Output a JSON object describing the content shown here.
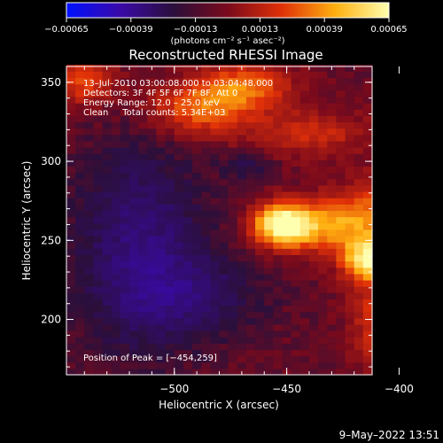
{
  "chart_data": {
    "type": "heatmap",
    "title": "Reconstructed RHESSI Image",
    "xlabel": "Heliocentric X (arcsec)",
    "ylabel": "Heliocentric Y (arcsec)",
    "xlim": [
      -548,
      -412
    ],
    "ylim": [
      165,
      360
    ],
    "x_ticks": [
      -500,
      -450,
      -400
    ],
    "x_tick_labels": [
      "−500",
      "−450",
      "−400"
    ],
    "y_ticks": [
      200,
      250,
      300,
      350
    ],
    "y_tick_labels": [
      "200",
      "250",
      "300",
      "350"
    ],
    "colorbar": {
      "range": [
        -0.00065,
        0.00065
      ],
      "tick_labels": [
        "−0.00065",
        "−0.00039",
        "−0.00013",
        "0.00013",
        "0.00039",
        "0.00065"
      ],
      "units_label": "(photons cm⁻² s⁻¹ asec⁻²)",
      "colors": [
        "#0010ff",
        "#3a0aa8",
        "#2b0f3b",
        "#7a0a1c",
        "#e03008",
        "#ffb010",
        "#ffffb0"
      ]
    },
    "annotations": [
      "13–Jul–2010 03:00:08.000 to 03:04:48.000",
      "Detectors: 3F 4F 5F 6F 7F 8F, Att 0",
      "Energy Range: 12.0 – 25.0 keV",
      "Clean     Total counts: 5.34E+03"
    ],
    "peak_label": "Position of Peak = [−454,259]",
    "sources": [
      {
        "x": -452,
        "y": 260,
        "amp": 1.0,
        "sx": 9,
        "sy": 9
      },
      {
        "x": -412,
        "y": 238,
        "amp": 0.92,
        "sx": 9,
        "sy": 9
      },
      {
        "x": -428,
        "y": 260,
        "amp": 0.6,
        "sx": 16,
        "sy": 12
      },
      {
        "x": -488,
        "y": 334,
        "amp": 0.5,
        "sx": 16,
        "sy": 12
      },
      {
        "x": -468,
        "y": 348,
        "amp": 0.45,
        "sx": 14,
        "sy": 10
      },
      {
        "x": -395,
        "y": 275,
        "amp": 0.55,
        "sx": 15,
        "sy": 15
      },
      {
        "x": -405,
        "y": 200,
        "amp": 0.45,
        "sx": 10,
        "sy": 22
      },
      {
        "x": -540,
        "y": 350,
        "amp": 0.4,
        "sx": 10,
        "sy": 10
      },
      {
        "x": -372,
        "y": 335,
        "amp": 0.45,
        "sx": 16,
        "sy": 20
      },
      {
        "x": -440,
        "y": 318,
        "amp": 0.3,
        "sx": 18,
        "sy": 10
      }
    ],
    "negatives": [
      {
        "x": -515,
        "y": 245,
        "amp": 0.8,
        "sx": 20,
        "sy": 45
      },
      {
        "x": -490,
        "y": 215,
        "amp": 0.5,
        "sx": 22,
        "sy": 18
      },
      {
        "x": -468,
        "y": 298,
        "amp": 0.4,
        "sx": 8,
        "sy": 6
      }
    ]
  },
  "timestamp": "9–May–2022 13:51"
}
